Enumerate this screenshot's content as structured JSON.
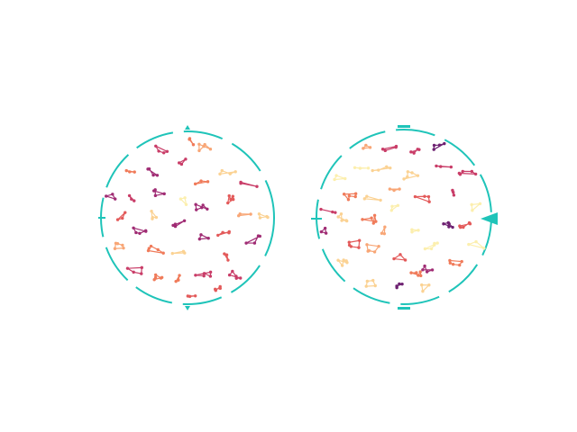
{
  "colors": {
    "ring": "#1fc4b9",
    "background": "#ffffff",
    "palette": [
      "#fcefae",
      "#fbd293",
      "#f8a676",
      "#f07b5a",
      "#e35a5a",
      "#c93d68",
      "#a02c74",
      "#6e2272"
    ]
  },
  "panels": [
    {
      "name": "left-disc",
      "marker_style": "triangles"
    },
    {
      "name": "right-disc",
      "marker_style": "bars-and-arrow"
    }
  ]
}
